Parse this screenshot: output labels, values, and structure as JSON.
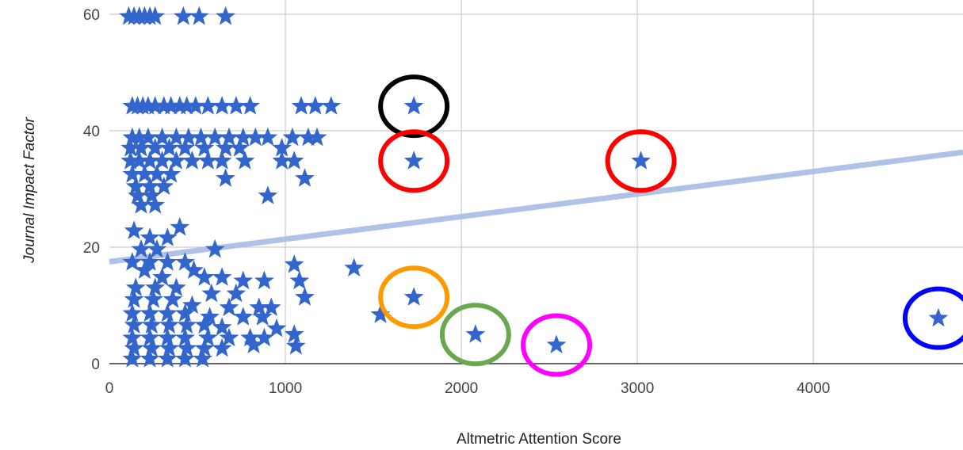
{
  "chart_data": {
    "type": "scatter",
    "xlabel": "Altmetric Attention Score",
    "ylabel": "Journal Impact Factor",
    "xlim": [
      0,
      4850
    ],
    "ylim": [
      0,
      60
    ],
    "xticks": [
      0,
      1000,
      2000,
      3000,
      4000
    ],
    "yticks": [
      0,
      20,
      40,
      60
    ],
    "xtick_labels": [
      "0",
      "1000",
      "2000",
      "3000",
      "4000"
    ],
    "ytick_labels": [
      "0",
      "20",
      "40",
      "60"
    ],
    "grid": true,
    "marker": "star",
    "colors": {
      "points": "#3366cc",
      "trendline": "#a9bce6",
      "grid": "#cccccc",
      "baseline": "#333333"
    },
    "trendline": {
      "type": "linear",
      "points": [
        [
          0,
          17.5
        ],
        [
          4850,
          36.3
        ]
      ]
    },
    "series": [
      {
        "values": [
          [
            110,
            59.6
          ],
          [
            140,
            59.6
          ],
          [
            170,
            59.6
          ],
          [
            200,
            59.6
          ],
          [
            230,
            59.6
          ],
          [
            260,
            59.6
          ],
          [
            420,
            59.6
          ],
          [
            510,
            59.6
          ],
          [
            660,
            59.6
          ],
          [
            130,
            44.2
          ],
          [
            160,
            44.2
          ],
          [
            190,
            44.2
          ],
          [
            220,
            44.2
          ],
          [
            260,
            44.2
          ],
          [
            310,
            44.2
          ],
          [
            350,
            44.2
          ],
          [
            400,
            44.2
          ],
          [
            440,
            44.2
          ],
          [
            490,
            44.2
          ],
          [
            560,
            44.2
          ],
          [
            640,
            44.2
          ],
          [
            720,
            44.2
          ],
          [
            800,
            44.2
          ],
          [
            1090,
            44.2
          ],
          [
            1170,
            44.2
          ],
          [
            1260,
            44.2
          ],
          [
            1730,
            44.2
          ],
          [
            130,
            38.8
          ],
          [
            170,
            38.8
          ],
          [
            220,
            38.8
          ],
          [
            300,
            38.8
          ],
          [
            380,
            38.8
          ],
          [
            450,
            38.8
          ],
          [
            520,
            38.8
          ],
          [
            600,
            38.8
          ],
          [
            680,
            38.8
          ],
          [
            760,
            38.8
          ],
          [
            830,
            38.8
          ],
          [
            900,
            38.8
          ],
          [
            1040,
            38.8
          ],
          [
            1130,
            38.8
          ],
          [
            1180,
            38.8
          ],
          [
            120,
            37.0
          ],
          [
            180,
            37.0
          ],
          [
            260,
            37.0
          ],
          [
            340,
            37.0
          ],
          [
            430,
            37.0
          ],
          [
            540,
            37.0
          ],
          [
            660,
            37.0
          ],
          [
            740,
            37.0
          ],
          [
            980,
            37.0
          ],
          [
            120,
            34.8
          ],
          [
            170,
            34.8
          ],
          [
            230,
            34.8
          ],
          [
            300,
            34.8
          ],
          [
            380,
            34.8
          ],
          [
            470,
            34.8
          ],
          [
            560,
            34.8
          ],
          [
            640,
            34.8
          ],
          [
            770,
            34.8
          ],
          [
            980,
            34.8
          ],
          [
            1050,
            34.8
          ],
          [
            1730,
            34.8
          ],
          [
            3020,
            34.8
          ],
          [
            130,
            32.5
          ],
          [
            200,
            32.5
          ],
          [
            270,
            32.5
          ],
          [
            350,
            32.5
          ],
          [
            660,
            31.8
          ],
          [
            1110,
            31.8
          ],
          [
            150,
            30.4
          ],
          [
            230,
            30.4
          ],
          [
            310,
            30.4
          ],
          [
            160,
            28.8
          ],
          [
            240,
            28.8
          ],
          [
            900,
            28.8
          ],
          [
            180,
            27.2
          ],
          [
            260,
            27.2
          ],
          [
            140,
            22.8
          ],
          [
            230,
            21.6
          ],
          [
            330,
            21.6
          ],
          [
            400,
            23.4
          ],
          [
            180,
            19.6
          ],
          [
            270,
            19.6
          ],
          [
            600,
            19.6
          ],
          [
            130,
            17.4
          ],
          [
            230,
            17.4
          ],
          [
            330,
            17.4
          ],
          [
            430,
            17.4
          ],
          [
            1050,
            17.0
          ],
          [
            1390,
            16.4
          ],
          [
            200,
            16.0
          ],
          [
            480,
            16.0
          ],
          [
            300,
            14.8
          ],
          [
            540,
            14.8
          ],
          [
            640,
            14.8
          ],
          [
            760,
            14.2
          ],
          [
            880,
            14.2
          ],
          [
            1080,
            14.2
          ],
          [
            150,
            13.0
          ],
          [
            260,
            13.0
          ],
          [
            380,
            13.0
          ],
          [
            580,
            12.0
          ],
          [
            720,
            12.0
          ],
          [
            1110,
            11.4
          ],
          [
            1730,
            11.4
          ],
          [
            140,
            11.0
          ],
          [
            250,
            11.0
          ],
          [
            360,
            11.0
          ],
          [
            470,
            10.0
          ],
          [
            680,
            9.6
          ],
          [
            850,
            9.6
          ],
          [
            920,
            9.6
          ],
          [
            130,
            8.6
          ],
          [
            230,
            8.6
          ],
          [
            330,
            8.6
          ],
          [
            430,
            8.6
          ],
          [
            570,
            8.0
          ],
          [
            760,
            8.0
          ],
          [
            870,
            8.0
          ],
          [
            1540,
            8.4
          ],
          [
            140,
            6.6
          ],
          [
            240,
            6.6
          ],
          [
            340,
            6.6
          ],
          [
            440,
            6.6
          ],
          [
            540,
            6.6
          ],
          [
            640,
            6.2
          ],
          [
            950,
            6.0
          ],
          [
            1050,
            5.0
          ],
          [
            2080,
            5.0
          ],
          [
            130,
            4.4
          ],
          [
            230,
            4.4
          ],
          [
            330,
            4.4
          ],
          [
            430,
            4.4
          ],
          [
            560,
            4.4
          ],
          [
            680,
            4.4
          ],
          [
            800,
            4.4
          ],
          [
            880,
            4.4
          ],
          [
            140,
            2.6
          ],
          [
            240,
            2.6
          ],
          [
            340,
            2.6
          ],
          [
            440,
            2.6
          ],
          [
            540,
            2.6
          ],
          [
            640,
            2.6
          ],
          [
            820,
            3.2
          ],
          [
            1060,
            3.0
          ],
          [
            2540,
            3.2
          ],
          [
            130,
            0.8
          ],
          [
            230,
            0.8
          ],
          [
            330,
            0.8
          ],
          [
            430,
            0.8
          ],
          [
            530,
            0.8
          ],
          [
            4710,
            7.8
          ]
        ]
      }
    ],
    "annotations": [
      {
        "shape": "circle",
        "color": "#000000",
        "x": 1730,
        "y": 44.2
      },
      {
        "shape": "circle",
        "color": "#ff0000",
        "x": 1730,
        "y": 34.8
      },
      {
        "shape": "circle",
        "color": "#ff0000",
        "x": 3020,
        "y": 34.8
      },
      {
        "shape": "circle",
        "color": "#ff9900",
        "x": 1730,
        "y": 11.4
      },
      {
        "shape": "circle",
        "color": "#6aa84f",
        "x": 2080,
        "y": 5.0
      },
      {
        "shape": "circle",
        "color": "#ff00ff",
        "x": 2540,
        "y": 3.2
      },
      {
        "shape": "circle",
        "color": "#0000ff",
        "x": 4710,
        "y": 7.8
      }
    ]
  }
}
